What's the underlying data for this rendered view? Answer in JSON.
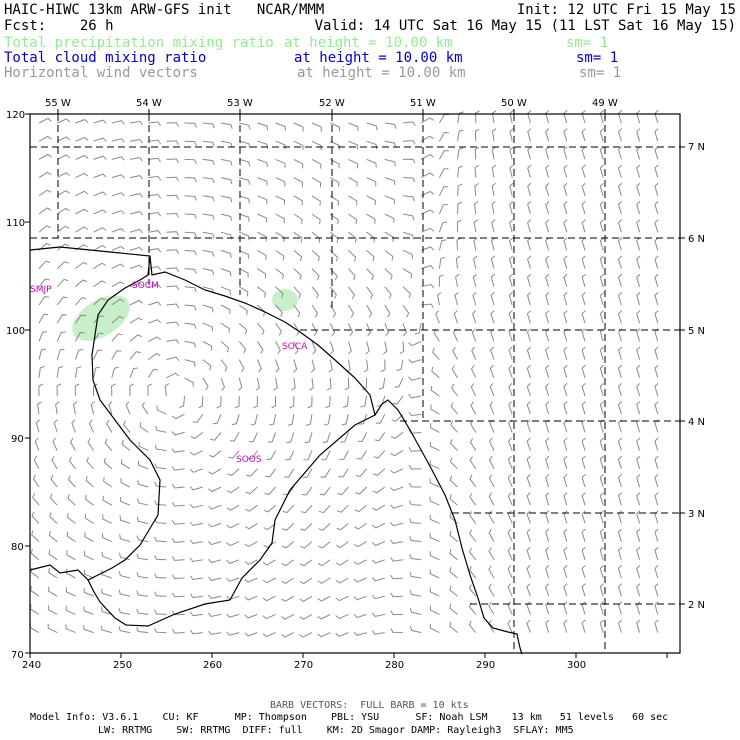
{
  "header": {
    "title": "HAIC-HIWC 13km ARW-GFS init   NCAR/MMM",
    "init": "Init: 12 UTC Fri 15 May 15",
    "fcst": "Fcst:    26 h",
    "valid": "Valid: 14 UTC Sat 16 May 15 (11 LST Sat 16 May 15)"
  },
  "fields": [
    {
      "name": "Total precipitation mixing ratio",
      "height": "at height = 10.00 km",
      "sm": "sm= 1",
      "color": "#90ee90"
    },
    {
      "name": "Total cloud mixing ratio",
      "height": "at height = 10.00 km",
      "sm": "sm= 1",
      "color": "#0000cc"
    },
    {
      "name": "Horizontal wind vectors",
      "height": "at height = 10.00 km",
      "sm": "sm= 1",
      "color": "#999999"
    }
  ],
  "map": {
    "lon_labels": [
      "55 W",
      "54 W",
      "53 W",
      "52 W",
      "51 W",
      "50 W",
      "49 W"
    ],
    "lat_labels": [
      "7 N",
      "6 N",
      "5 N",
      "4 N",
      "3 N",
      "2 N"
    ],
    "x_ticks": [
      "240",
      "250",
      "260",
      "270",
      "280",
      "290",
      "300"
    ],
    "y_ticks": [
      "120",
      "110",
      "100",
      "90",
      "80",
      "70"
    ],
    "stations": [
      "SMJP",
      "SOCM",
      "SOCA",
      "SOOS"
    ],
    "station_color": "#cc00cc",
    "precip_color": "#c8f0c8"
  },
  "footer": {
    "barb": "BARB VECTORS:  FULL BARB = 10 kts",
    "model_line1": "Model Info: V3.6.1    CU: KF      MP: Thompson    PBL: YSU      SF: Noah LSM    13 km   51 levels   60 sec",
    "model_line2": "LW: RRTMG    SW: RRTMG  DIFF: full    KM: 2D Smagor DAMP: Rayleigh3  SFLAY: MM5"
  }
}
